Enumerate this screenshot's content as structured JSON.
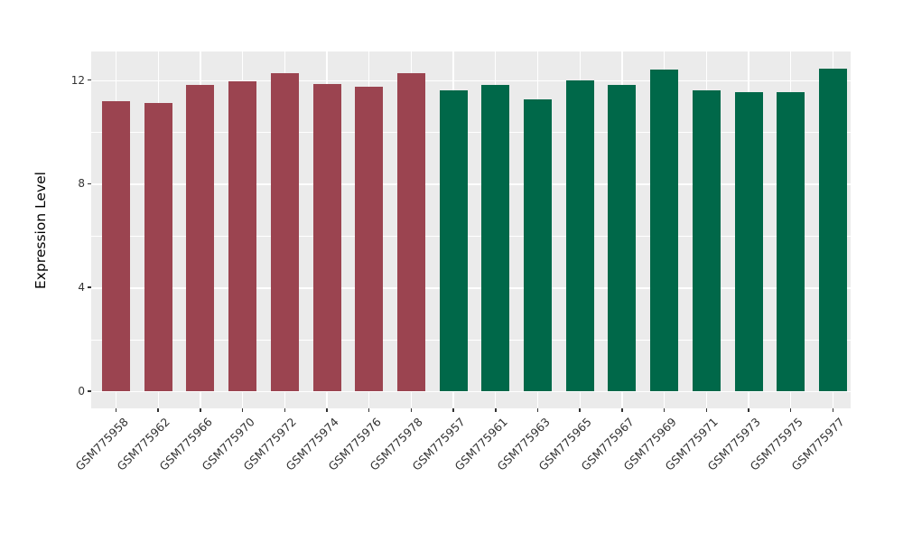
{
  "chart_data": {
    "type": "bar",
    "title": "",
    "xlabel": "",
    "ylabel": "Expression Level",
    "categories": [
      "GSM775958",
      "GSM775962",
      "GSM775966",
      "GSM775970",
      "GSM775972",
      "GSM775974",
      "GSM775976",
      "GSM775978",
      "GSM775957",
      "GSM775961",
      "GSM775963",
      "GSM775965",
      "GSM775967",
      "GSM775969",
      "GSM775971",
      "GSM775973",
      "GSM775975",
      "GSM775977"
    ],
    "values": [
      11.2,
      11.1,
      11.8,
      11.95,
      12.25,
      11.85,
      11.75,
      12.25,
      11.6,
      11.8,
      11.25,
      12.0,
      11.8,
      12.4,
      11.6,
      11.55,
      11.55,
      12.45
    ],
    "colors": [
      "#9B4450",
      "#9B4450",
      "#9B4450",
      "#9B4450",
      "#9B4450",
      "#9B4450",
      "#9B4450",
      "#9B4450",
      "#006849",
      "#006849",
      "#006849",
      "#006849",
      "#006849",
      "#006849",
      "#006849",
      "#006849",
      "#006849",
      "#006849"
    ],
    "groups": [
      {
        "name": "group-red",
        "color": "#9B4450",
        "bar_count": 8
      },
      {
        "name": "group-green",
        "color": "#006849",
        "bar_count": 10
      }
    ],
    "yticks": [
      0,
      4,
      8,
      12
    ],
    "minor_gridlines": [
      2,
      6,
      10
    ],
    "ylim": [
      -0.65,
      13.1
    ],
    "grid": true,
    "legend": false,
    "panel_background": "#EBEBEB",
    "gridline_color": "#FFFFFF",
    "axis_text_color": "#333333"
  }
}
